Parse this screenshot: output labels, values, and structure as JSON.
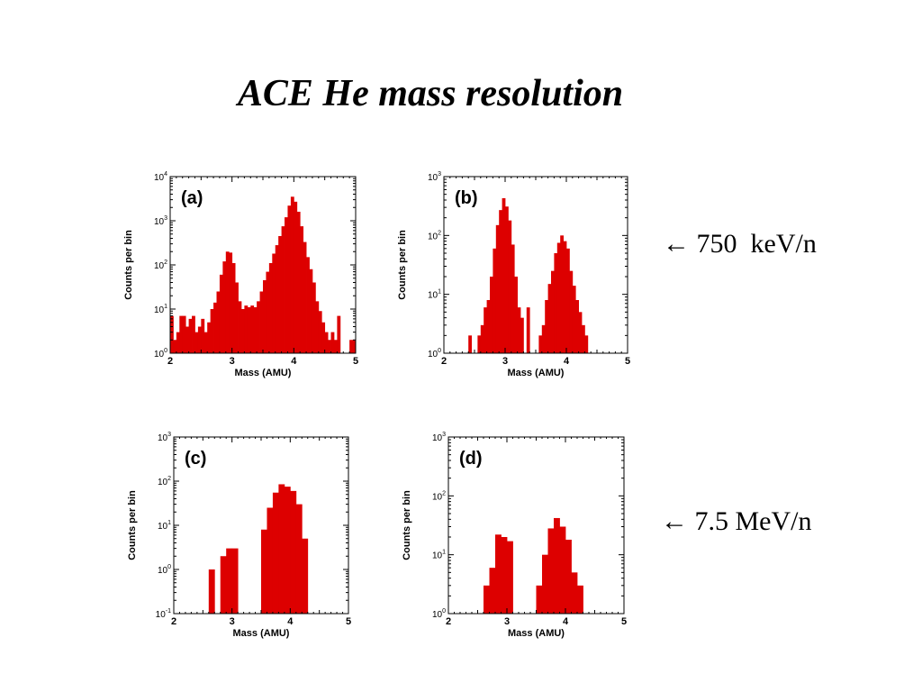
{
  "slide": {
    "title": "ACE He mass resolution",
    "annotation_row1": "← 750  keV/n",
    "annotation_row2": "← 7.5 MeV/n"
  },
  "chart_data": [
    {
      "type": "bar",
      "panel_label": "(a)",
      "xlabel": "Mass (AMU)",
      "ylabel": "Counts per bin",
      "xlim": [
        2,
        5
      ],
      "ylim_exp": [
        0,
        4
      ],
      "x_ticks": [
        "2",
        "3",
        "4",
        "5"
      ],
      "y_scale": "log",
      "bar_color": "#dd0000",
      "bin_width": 0.05,
      "bins": [
        {
          "x": 2.0,
          "y": 7
        },
        {
          "x": 2.05,
          "y": 2
        },
        {
          "x": 2.1,
          "y": 3
        },
        {
          "x": 2.15,
          "y": 7
        },
        {
          "x": 2.2,
          "y": 7
        },
        {
          "x": 2.25,
          "y": 4
        },
        {
          "x": 2.3,
          "y": 6
        },
        {
          "x": 2.35,
          "y": 7
        },
        {
          "x": 2.4,
          "y": 3
        },
        {
          "x": 2.45,
          "y": 4
        },
        {
          "x": 2.5,
          "y": 6
        },
        {
          "x": 2.55,
          "y": 3
        },
        {
          "x": 2.6,
          "y": 5
        },
        {
          "x": 2.65,
          "y": 10
        },
        {
          "x": 2.7,
          "y": 14
        },
        {
          "x": 2.75,
          "y": 25
        },
        {
          "x": 2.8,
          "y": 60
        },
        {
          "x": 2.85,
          "y": 120
        },
        {
          "x": 2.9,
          "y": 200
        },
        {
          "x": 2.95,
          "y": 190
        },
        {
          "x": 3.0,
          "y": 110
        },
        {
          "x": 3.05,
          "y": 40
        },
        {
          "x": 3.1,
          "y": 15
        },
        {
          "x": 3.15,
          "y": 10
        },
        {
          "x": 3.2,
          "y": 12
        },
        {
          "x": 3.25,
          "y": 11
        },
        {
          "x": 3.3,
          "y": 12
        },
        {
          "x": 3.35,
          "y": 11
        },
        {
          "x": 3.4,
          "y": 15
        },
        {
          "x": 3.45,
          "y": 25
        },
        {
          "x": 3.5,
          "y": 45
        },
        {
          "x": 3.55,
          "y": 70
        },
        {
          "x": 3.6,
          "y": 110
        },
        {
          "x": 3.65,
          "y": 180
        },
        {
          "x": 3.7,
          "y": 280
        },
        {
          "x": 3.75,
          "y": 450
        },
        {
          "x": 3.8,
          "y": 750
        },
        {
          "x": 3.85,
          "y": 1200
        },
        {
          "x": 3.9,
          "y": 2200
        },
        {
          "x": 3.95,
          "y": 3500
        },
        {
          "x": 4.0,
          "y": 2700
        },
        {
          "x": 4.05,
          "y": 1600
        },
        {
          "x": 4.1,
          "y": 750
        },
        {
          "x": 4.15,
          "y": 330
        },
        {
          "x": 4.2,
          "y": 150
        },
        {
          "x": 4.25,
          "y": 80
        },
        {
          "x": 4.3,
          "y": 40
        },
        {
          "x": 4.35,
          "y": 15
        },
        {
          "x": 4.4,
          "y": 9
        },
        {
          "x": 4.45,
          "y": 5
        },
        {
          "x": 4.5,
          "y": 3
        },
        {
          "x": 4.55,
          "y": 2
        },
        {
          "x": 4.6,
          "y": 3
        },
        {
          "x": 4.65,
          "y": 2
        },
        {
          "x": 4.7,
          "y": 7
        },
        {
          "x": 4.9,
          "y": 2
        },
        {
          "x": 4.95,
          "y": 2
        }
      ]
    },
    {
      "type": "bar",
      "panel_label": "(b)",
      "xlabel": "Mass (AMU)",
      "ylabel": "Counts per bin",
      "xlim": [
        2,
        5
      ],
      "ylim_exp": [
        0,
        3
      ],
      "x_ticks": [
        "2",
        "3",
        "4",
        "5"
      ],
      "y_scale": "log",
      "bar_color": "#dd0000",
      "bin_width": 0.05,
      "bins": [
        {
          "x": 2.4,
          "y": 2
        },
        {
          "x": 2.55,
          "y": 2
        },
        {
          "x": 2.6,
          "y": 3
        },
        {
          "x": 2.65,
          "y": 6
        },
        {
          "x": 2.7,
          "y": 8
        },
        {
          "x": 2.75,
          "y": 20
        },
        {
          "x": 2.8,
          "y": 60
        },
        {
          "x": 2.85,
          "y": 150
        },
        {
          "x": 2.9,
          "y": 270
        },
        {
          "x": 2.95,
          "y": 430
        },
        {
          "x": 3.0,
          "y": 310
        },
        {
          "x": 3.05,
          "y": 180
        },
        {
          "x": 3.1,
          "y": 70
        },
        {
          "x": 3.15,
          "y": 20
        },
        {
          "x": 3.2,
          "y": 6
        },
        {
          "x": 3.25,
          "y": 4
        },
        {
          "x": 3.35,
          "y": 6
        },
        {
          "x": 3.55,
          "y": 2
        },
        {
          "x": 3.6,
          "y": 3
        },
        {
          "x": 3.65,
          "y": 8
        },
        {
          "x": 3.7,
          "y": 15
        },
        {
          "x": 3.75,
          "y": 25
        },
        {
          "x": 3.8,
          "y": 50
        },
        {
          "x": 3.85,
          "y": 75
        },
        {
          "x": 3.9,
          "y": 100
        },
        {
          "x": 3.95,
          "y": 80
        },
        {
          "x": 4.0,
          "y": 60
        },
        {
          "x": 4.05,
          "y": 25
        },
        {
          "x": 4.1,
          "y": 14
        },
        {
          "x": 4.15,
          "y": 8
        },
        {
          "x": 4.2,
          "y": 5
        },
        {
          "x": 4.25,
          "y": 3
        },
        {
          "x": 4.3,
          "y": 2
        }
      ]
    },
    {
      "type": "bar",
      "panel_label": "(c)",
      "xlabel": "Mass (AMU)",
      "ylabel": "Counts per bin",
      "xlim": [
        2,
        5
      ],
      "ylim_exp": [
        -1,
        3
      ],
      "x_ticks": [
        "2",
        "3",
        "4",
        "5"
      ],
      "y_scale": "log",
      "bar_color": "#dd0000",
      "bin_width": 0.1,
      "bins": [
        {
          "x": 2.6,
          "y": 1
        },
        {
          "x": 2.8,
          "y": 2
        },
        {
          "x": 2.9,
          "y": 3
        },
        {
          "x": 3.0,
          "y": 3
        },
        {
          "x": 3.5,
          "y": 8
        },
        {
          "x": 3.6,
          "y": 25
        },
        {
          "x": 3.7,
          "y": 55
        },
        {
          "x": 3.8,
          "y": 85
        },
        {
          "x": 3.9,
          "y": 75
        },
        {
          "x": 4.0,
          "y": 60
        },
        {
          "x": 4.1,
          "y": 30
        },
        {
          "x": 4.2,
          "y": 5
        }
      ]
    },
    {
      "type": "bar",
      "panel_label": "(d)",
      "xlabel": "Mass (AMU)",
      "ylabel": "Counts per bin",
      "xlim": [
        2,
        5
      ],
      "ylim_exp": [
        0,
        3
      ],
      "x_ticks": [
        "2",
        "3",
        "4",
        "5"
      ],
      "y_scale": "log",
      "bar_color": "#dd0000",
      "bin_width": 0.1,
      "bins": [
        {
          "x": 2.6,
          "y": 3
        },
        {
          "x": 2.7,
          "y": 6
        },
        {
          "x": 2.8,
          "y": 22
        },
        {
          "x": 2.9,
          "y": 20
        },
        {
          "x": 3.0,
          "y": 17
        },
        {
          "x": 3.5,
          "y": 3
        },
        {
          "x": 3.6,
          "y": 10
        },
        {
          "x": 3.7,
          "y": 28
        },
        {
          "x": 3.8,
          "y": 42
        },
        {
          "x": 3.9,
          "y": 30
        },
        {
          "x": 4.0,
          "y": 18
        },
        {
          "x": 4.1,
          "y": 5
        },
        {
          "x": 4.2,
          "y": 3
        }
      ]
    }
  ]
}
